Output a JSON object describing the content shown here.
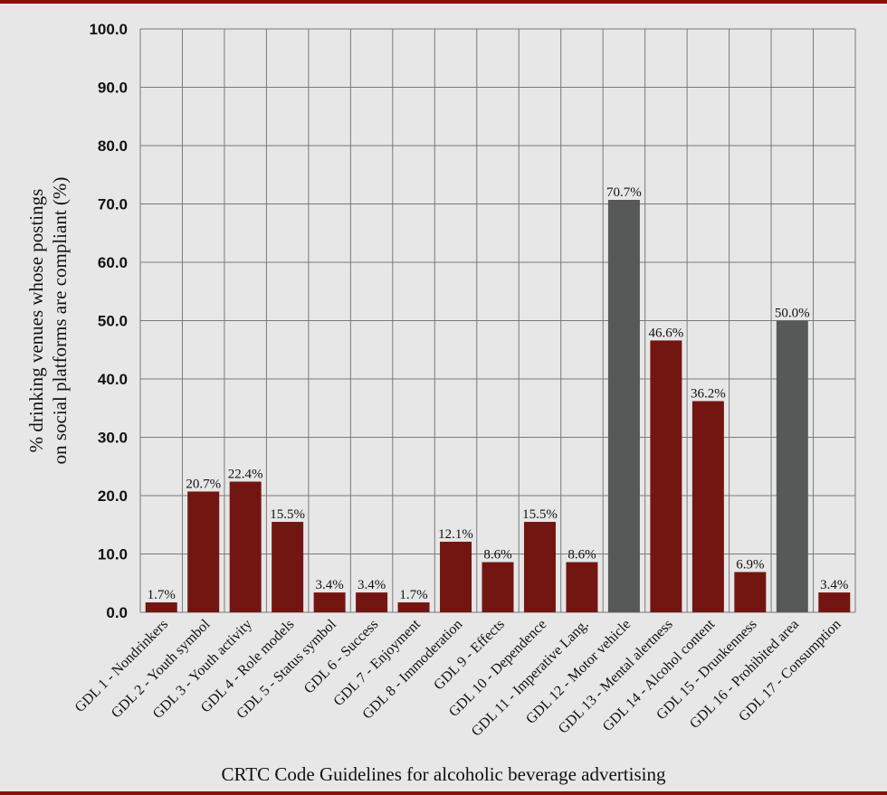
{
  "chart_data": {
    "type": "bar",
    "title": "",
    "xlabel": "CRTC Code Guidelines for alcoholic beverage advertising",
    "ylabel_lines": [
      "% drinking venues whose postings",
      "on social platforms are compliant (%)"
    ],
    "ylim": [
      0,
      100
    ],
    "yticks": [
      "0.0",
      "10.0",
      "20.0",
      "30.0",
      "40.0",
      "50.0",
      "60.0",
      "70.0",
      "80.0",
      "90.0",
      "100.0"
    ],
    "grid": true,
    "categories": [
      "GDL 1 - Nondrinkers",
      "GDL 2 - Youth symbol",
      "GDL 3 - Youth activity",
      "GDL 4 - Role models",
      "GDL 5 - Status symbol",
      "GDL 6 - Success",
      "GDL 7 - Enjoyment",
      "GDL 8 - Immoderation",
      "GDL 9 - Effects",
      "GDL 10 - Dependence",
      "GDL 11 - Imperative Lang.",
      "GDL 12 - Motor vehicle",
      "GDL 13 - Mental alertness",
      "GDL 14 - Alcohol content",
      "GDL 15 - Drunkenness",
      "GDL 16 - Prohibited area",
      "GDL 17 - Consumption"
    ],
    "values": [
      1.7,
      20.7,
      22.4,
      15.5,
      3.4,
      3.4,
      1.7,
      12.1,
      8.6,
      15.5,
      8.6,
      70.7,
      46.6,
      36.2,
      6.9,
      50.0,
      3.4
    ],
    "labels": [
      "1.7%",
      "20.7%",
      "22.4%",
      "15.5%",
      "3.4%",
      "3.4%",
      "1.7%",
      "12.1%",
      "8.6%",
      "15.5%",
      "8.6%",
      "70.7%",
      "46.6%",
      "36.2%",
      "6.9%",
      "50.0%",
      "3.4%"
    ],
    "highlight": [
      false,
      false,
      false,
      false,
      false,
      false,
      false,
      false,
      false,
      false,
      false,
      true,
      false,
      false,
      false,
      true,
      false
    ],
    "colors": {
      "default": "#731612",
      "highlight": "#575858",
      "border": "#8b0e07",
      "background": "#e7e7e7",
      "grid": "#7a7a7a"
    }
  }
}
